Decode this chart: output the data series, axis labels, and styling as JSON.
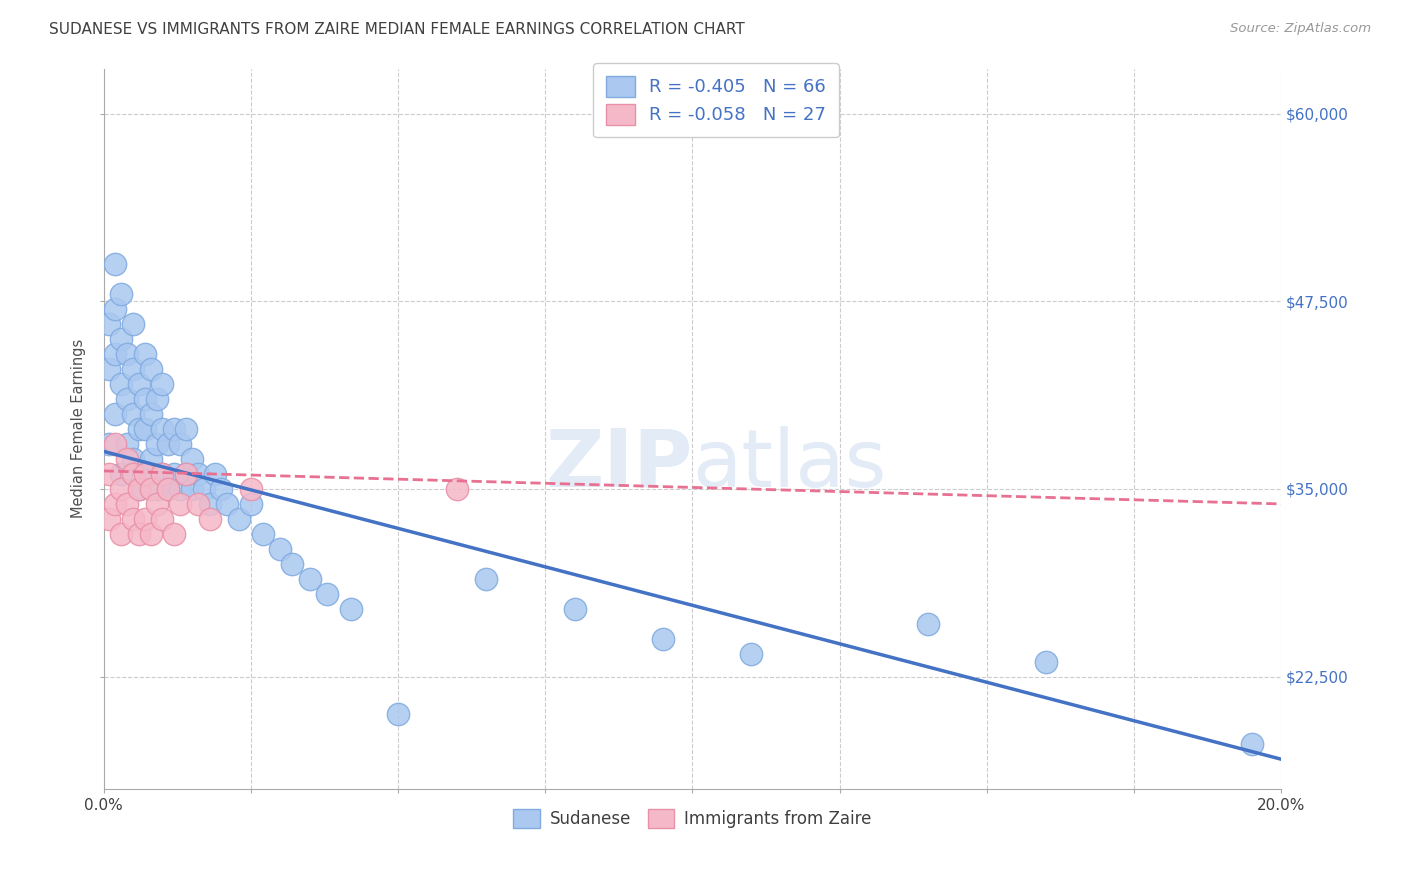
{
  "title": "SUDANESE VS IMMIGRANTS FROM ZAIRE MEDIAN FEMALE EARNINGS CORRELATION CHART",
  "source": "Source: ZipAtlas.com",
  "ylabel": "Median Female Earnings",
  "xlim": [
    0,
    0.2
  ],
  "ylim": [
    15000,
    63000
  ],
  "xtick_positions": [
    0.0,
    0.025,
    0.05,
    0.075,
    0.1,
    0.125,
    0.15,
    0.175,
    0.2
  ],
  "xtick_labels": [
    "0.0%",
    "",
    "",
    "",
    "",
    "",
    "",
    "",
    "20.0%"
  ],
  "ytick_positions": [
    22500,
    35000,
    47500,
    60000
  ],
  "ytick_labels": [
    "$22,500",
    "$35,000",
    "$47,500",
    "$60,000"
  ],
  "R1": -0.405,
  "N1": 66,
  "R2": -0.058,
  "N2": 27,
  "scatter1_color": "#aac8f0",
  "scatter1_edge": "#80aae0",
  "scatter2_color": "#f5b8c8",
  "scatter2_edge": "#e890a8",
  "line1_color": "#4472c4",
  "line2_color": "#e87090",
  "watermark": "ZIPatlas",
  "watermark_color": "#c8d8f0",
  "bottom_label1": "Sudanese",
  "bottom_label2": "Immigrants from Zaire",
  "grid_color": "#cccccc",
  "bg_color": "#ffffff",
  "title_color": "#404040",
  "axis_color": "#505050",
  "ytick_color": "#4472c4",
  "xtick_color": "#404040",
  "blue_scatter_x": [
    0.001,
    0.001,
    0.001,
    0.002,
    0.002,
    0.002,
    0.002,
    0.003,
    0.003,
    0.003,
    0.003,
    0.004,
    0.004,
    0.004,
    0.005,
    0.005,
    0.005,
    0.005,
    0.006,
    0.006,
    0.006,
    0.007,
    0.007,
    0.007,
    0.007,
    0.008,
    0.008,
    0.008,
    0.009,
    0.009,
    0.009,
    0.01,
    0.01,
    0.01,
    0.011,
    0.011,
    0.012,
    0.012,
    0.013,
    0.013,
    0.014,
    0.014,
    0.015,
    0.015,
    0.016,
    0.017,
    0.018,
    0.019,
    0.02,
    0.021,
    0.023,
    0.025,
    0.027,
    0.03,
    0.032,
    0.035,
    0.038,
    0.042,
    0.05,
    0.065,
    0.08,
    0.095,
    0.11,
    0.14,
    0.16,
    0.195
  ],
  "blue_scatter_y": [
    38000,
    43000,
    46000,
    40000,
    44000,
    47000,
    50000,
    36000,
    42000,
    45000,
    48000,
    38000,
    41000,
    44000,
    37000,
    40000,
    43000,
    46000,
    35000,
    39000,
    42000,
    36000,
    39000,
    41000,
    44000,
    37000,
    40000,
    43000,
    35000,
    38000,
    41000,
    36000,
    39000,
    42000,
    35000,
    38000,
    36000,
    39000,
    35000,
    38000,
    36000,
    39000,
    35000,
    37000,
    36000,
    35000,
    34000,
    36000,
    35000,
    34000,
    33000,
    34000,
    32000,
    31000,
    30000,
    29000,
    28000,
    27000,
    20000,
    29000,
    27000,
    25000,
    24000,
    26000,
    23500,
    18000
  ],
  "pink_scatter_x": [
    0.001,
    0.001,
    0.002,
    0.002,
    0.003,
    0.003,
    0.004,
    0.004,
    0.005,
    0.005,
    0.006,
    0.006,
    0.007,
    0.007,
    0.008,
    0.008,
    0.009,
    0.01,
    0.01,
    0.011,
    0.012,
    0.013,
    0.014,
    0.016,
    0.018,
    0.025,
    0.06
  ],
  "pink_scatter_y": [
    36000,
    33000,
    38000,
    34000,
    35000,
    32000,
    37000,
    34000,
    36000,
    33000,
    35000,
    32000,
    36000,
    33000,
    35000,
    32000,
    34000,
    36000,
    33000,
    35000,
    32000,
    34000,
    36000,
    34000,
    33000,
    35000,
    35000
  ],
  "line1_x0": 0.0,
  "line1_y0": 37500,
  "line1_x1": 0.2,
  "line1_y1": 17000,
  "line2_x0": 0.0,
  "line2_y0": 36200,
  "line2_x1": 0.2,
  "line2_y1": 34000
}
